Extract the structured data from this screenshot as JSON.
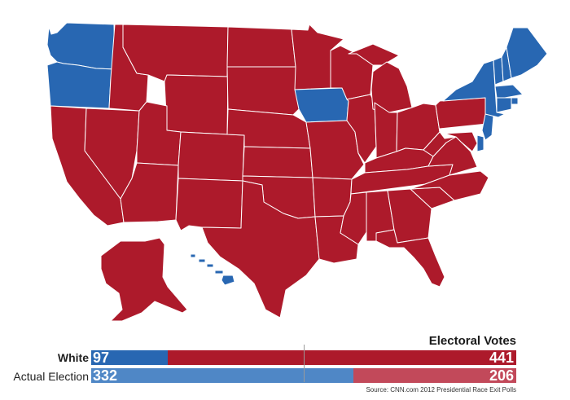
{
  "colors": {
    "dem": "#2867b2",
    "rep": "#ad1a2b",
    "dem_light": "#4f87c6",
    "rep_light": "#c2495a",
    "border": "#ffffff"
  },
  "legend": {
    "title": "Electoral Votes",
    "total": 538,
    "rows": [
      {
        "label": "White",
        "dem": 97,
        "rep": 441
      },
      {
        "label": "Actual Election",
        "dem": 332,
        "rep": 206
      }
    ]
  },
  "source": "Source: CNN.com 2012 Presidential Race Exit Polls",
  "map": {
    "blue_states": [
      "Washington",
      "Oregon",
      "Iowa",
      "Delaware",
      "Hawaii",
      "New York",
      "Vermont",
      "New Hampshire",
      "Maine",
      "Massachusetts",
      "Rhode Island",
      "Connecticut",
      "New Jersey"
    ],
    "red_states": [
      "California",
      "Nevada",
      "Idaho",
      "Montana",
      "Wyoming",
      "Utah",
      "Arizona",
      "Colorado",
      "New Mexico",
      "North Dakota",
      "South Dakota",
      "Nebraska",
      "Kansas",
      "Oklahoma",
      "Texas",
      "Minnesota",
      "Missouri",
      "Arkansas",
      "Louisiana",
      "Wisconsin",
      "Illinois",
      "Michigan",
      "Indiana",
      "Ohio",
      "Kentucky",
      "Tennessee",
      "Mississippi",
      "Alabama",
      "Georgia",
      "Florida",
      "South Carolina",
      "North Carolina",
      "Virginia",
      "West Virginia",
      "Pennsylvania",
      "Maryland",
      "Alaska"
    ]
  }
}
